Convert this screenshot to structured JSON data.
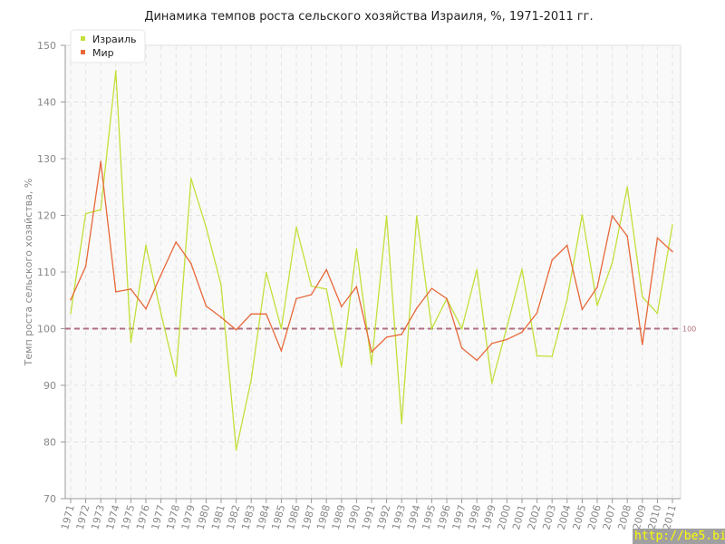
{
  "chart_data": {
    "type": "line",
    "title": "Динамика темпов роста сельского хозяйства Израиля, %, 1971-2011 гг.",
    "xlabel": "",
    "ylabel": "Темп роста сельского хозяйства, %",
    "ylim": [
      70,
      150
    ],
    "yticks": [
      70,
      80,
      90,
      100,
      110,
      120,
      130,
      140,
      150
    ],
    "grid": true,
    "legend_position": "top-left",
    "x": [
      1971,
      1972,
      1973,
      1974,
      1975,
      1976,
      1977,
      1978,
      1979,
      1980,
      1981,
      1982,
      1983,
      1984,
      1985,
      1986,
      1987,
      1988,
      1989,
      1990,
      1991,
      1992,
      1993,
      1994,
      1995,
      1996,
      1997,
      1998,
      1999,
      2000,
      2001,
      2002,
      2003,
      2004,
      2005,
      2006,
      2007,
      2008,
      2009,
      2010,
      2011
    ],
    "series": [
      {
        "name": "Израиль",
        "color": "#c2e03a",
        "values": [
          102.7,
          120.3,
          121.0,
          145.5,
          97.6,
          114.7,
          102.7,
          91.6,
          126.5,
          117.9,
          107.7,
          78.6,
          91.0,
          109.9,
          100.0,
          117.9,
          107.5,
          107.0,
          93.3,
          114.1,
          93.7,
          119.9,
          83.3,
          119.9,
          100.0,
          105.3,
          100.0,
          110.4,
          90.4,
          100.3,
          110.5,
          95.2,
          95.1,
          105.2,
          120.1,
          104.1,
          111.6,
          125.0,
          105.6,
          102.7,
          118.3
        ]
      },
      {
        "name": "Мир",
        "color": "#e8683a",
        "values": [
          105.1,
          111.0,
          129.5,
          106.5,
          107.0,
          103.5,
          109.5,
          115.3,
          111.5,
          104.0,
          102.0,
          99.8,
          102.6,
          102.6,
          96.1,
          105.3,
          106.0,
          110.4,
          103.9,
          107.4,
          95.9,
          98.5,
          99.0,
          103.6,
          107.1,
          105.3,
          96.6,
          94.4,
          97.4,
          98.1,
          99.4,
          102.8,
          112.1,
          114.7,
          103.4,
          107.3,
          119.9,
          116.3,
          97.2,
          116.0,
          113.6
        ]
      }
    ],
    "reference_line": {
      "value": 100,
      "label": "100",
      "color": "#b0707e"
    }
  },
  "watermark": "http://be5.biz"
}
